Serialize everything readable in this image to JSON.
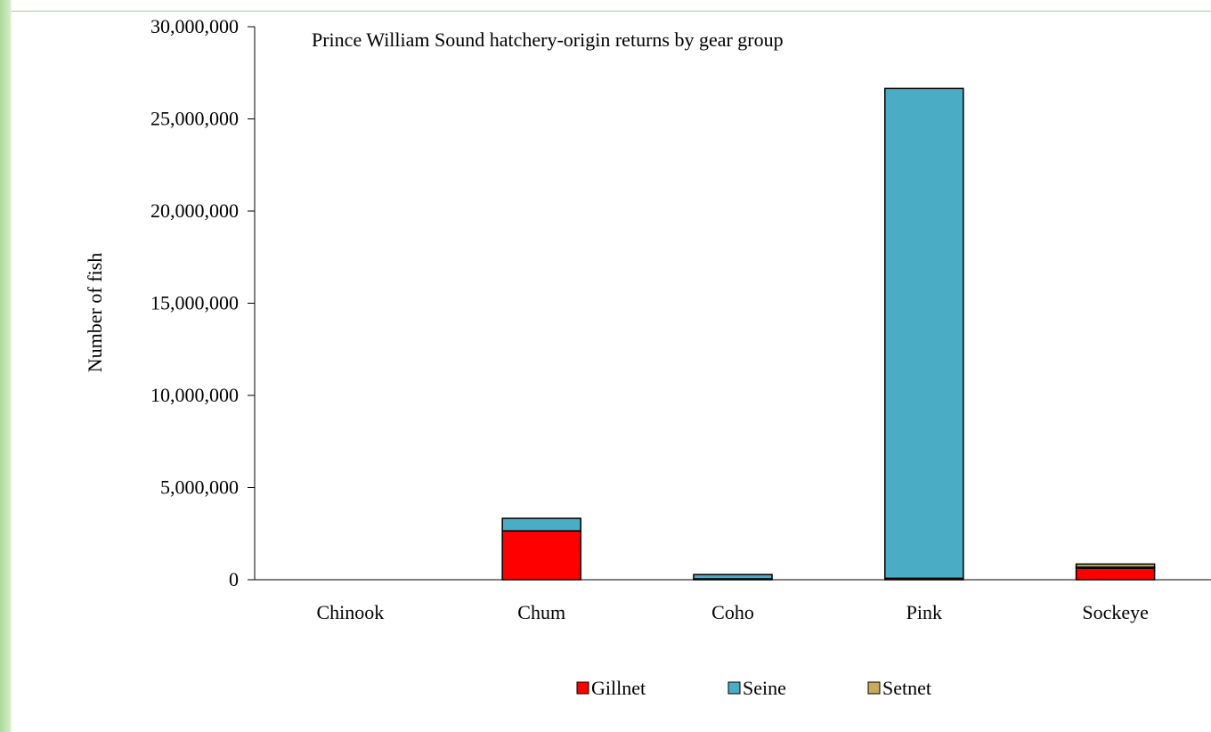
{
  "chart_data": {
    "type": "bar",
    "stacked": true,
    "title": "Prince William Sound hatchery-origin returns by gear group",
    "xlabel": "",
    "ylabel": "Number of fish",
    "ylim": [
      0,
      30000000
    ],
    "yticks": [
      0,
      5000000,
      10000000,
      15000000,
      20000000,
      25000000,
      30000000
    ],
    "ytick_labels": [
      "0",
      "5,000,000",
      "10,000,000",
      "15,000,000",
      "20,000,000",
      "25,000,000",
      "30,000,000"
    ],
    "categories": [
      "Chinook",
      "Chum",
      "Coho",
      "Pink",
      "Sockeye"
    ],
    "series": [
      {
        "name": "Gillnet",
        "color": "#ff0000",
        "values": [
          0,
          2650000,
          50000,
          80000,
          620000
        ]
      },
      {
        "name": "Seine",
        "color": "#4bacc6",
        "values": [
          0,
          680000,
          230000,
          26570000,
          60000
        ]
      },
      {
        "name": "Setnet",
        "color": "#c9a95b",
        "values": [
          0,
          0,
          0,
          0,
          170000
        ]
      }
    ],
    "legend_position": "bottom",
    "grid": false
  }
}
